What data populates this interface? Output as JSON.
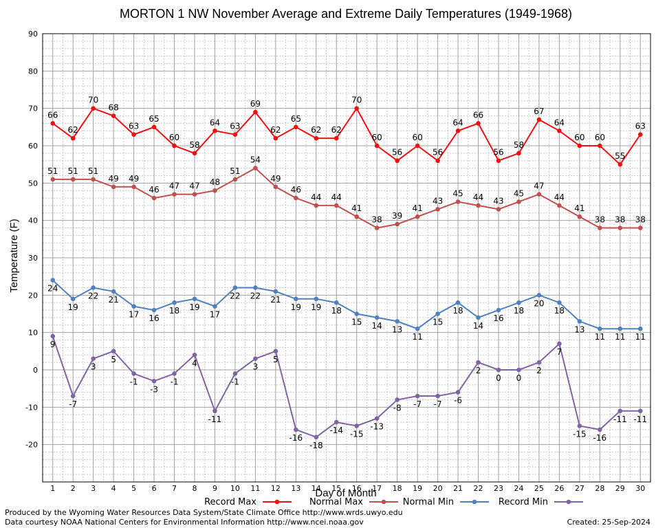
{
  "chart_data": {
    "type": "line",
    "title": "MORTON 1 NW November Average and Extreme Daily Temperatures (1949-1968)",
    "xlabel": "Day of Month",
    "ylabel": "Temperature (F)",
    "x": [
      1,
      2,
      3,
      4,
      5,
      6,
      7,
      8,
      9,
      10,
      11,
      12,
      13,
      14,
      15,
      16,
      17,
      18,
      19,
      20,
      21,
      22,
      23,
      24,
      25,
      26,
      27,
      28,
      29,
      30
    ],
    "xlim": [
      0.5,
      30.5
    ],
    "ylim": [
      -30,
      90
    ],
    "yticks": [
      -20,
      -10,
      0,
      10,
      20,
      30,
      40,
      50,
      60,
      70,
      80,
      90
    ],
    "grid": true,
    "legend_position": "bottom",
    "series": [
      {
        "name": "Record Max",
        "color": "#ee1111",
        "label_pos": "above",
        "values": [
          66,
          62,
          70,
          68,
          63,
          65,
          60,
          58,
          64,
          63,
          69,
          62,
          65,
          62,
          62,
          70,
          60,
          56,
          60,
          56,
          64,
          66,
          56,
          58,
          67,
          64,
          60,
          60,
          55,
          63
        ]
      },
      {
        "name": "Normal Max",
        "color": "#c0504d",
        "label_pos": "above",
        "values": [
          51,
          51,
          51,
          49,
          49,
          46,
          47,
          47,
          48,
          51,
          54,
          49,
          46,
          44,
          44,
          41,
          38,
          39,
          41,
          43,
          45,
          44,
          43,
          45,
          47,
          44,
          41,
          38,
          38,
          38
        ]
      },
      {
        "name": "Normal Min",
        "color": "#4f81bd",
        "label_pos": "below",
        "values": [
          24,
          19,
          22,
          21,
          17,
          16,
          18,
          19,
          17,
          22,
          22,
          21,
          19,
          19,
          18,
          15,
          14,
          13,
          11,
          15,
          18,
          14,
          16,
          18,
          20,
          18,
          13,
          11,
          11,
          11
        ]
      },
      {
        "name": "Record Min",
        "color": "#8064a2",
        "label_pos": "below",
        "values": [
          9,
          -7,
          3,
          5,
          -1,
          -3,
          -1,
          4,
          -11,
          -1,
          3,
          5,
          -16,
          -18,
          -14,
          -15,
          -13,
          -8,
          -7,
          -7,
          -6,
          2,
          0,
          0,
          2,
          7,
          -15,
          -16,
          -11,
          -11
        ]
      }
    ]
  },
  "footer": {
    "produced_by": "Produced by the Wyoming Water Resources Data System/State Climate Office http://www.wrds.uwyo.edu",
    "courtesy": "Data courtesy NOAA National Centers for Environmental Information http://www.ncei.noaa.gov",
    "created": "Created:  25-Sep-2024"
  }
}
